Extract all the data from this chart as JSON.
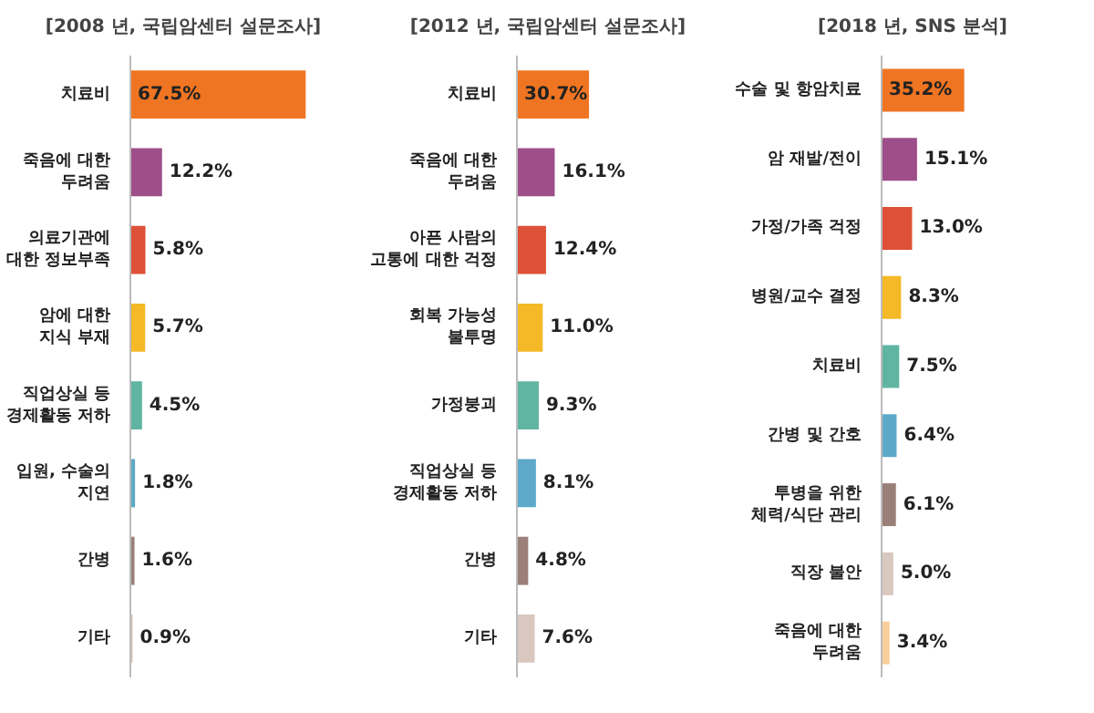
{
  "chart_data": [
    {
      "type": "bar",
      "orientation": "horizontal",
      "title": "[2008 년, 국립암센터 설문조사]",
      "data_labels": true,
      "categories": [
        "치료비",
        "죽음에 대한\n두려움",
        "의료기관에\n대한 정보부족",
        "암에 대한\n지식 부재",
        "직업상실 등\n경제활동 저하",
        "입원, 수술의\n지연",
        "간병",
        "기타"
      ],
      "values": [
        67.5,
        12.2,
        5.8,
        5.7,
        4.5,
        1.8,
        1.6,
        0.9
      ],
      "value_labels": [
        "67.5%",
        "12.2%",
        "5.8%",
        "5.7%",
        "4.5%",
        "1.8%",
        "1.6%",
        "0.9%"
      ],
      "colors": [
        "#f07522",
        "#9e4f8a",
        "#de5138",
        "#f5b927",
        "#5fb5a2",
        "#5ea9c9",
        "#9a8078",
        "#d8c8c0"
      ]
    },
    {
      "type": "bar",
      "orientation": "horizontal",
      "title": "[2012 년, 국립암센터 설문조사]",
      "data_labels": true,
      "categories": [
        "치료비",
        "죽음에 대한\n두려움",
        "아픈 사람의\n고통에 대한 걱정",
        "회복 가능성\n불투명",
        "가정붕괴",
        "직업상실 등\n경제활동 저하",
        "간병",
        "기타"
      ],
      "values": [
        30.7,
        16.1,
        12.4,
        11.0,
        9.3,
        8.1,
        4.8,
        7.6
      ],
      "value_labels": [
        "30.7%",
        "16.1%",
        "12.4%",
        "11.0%",
        "9.3%",
        "8.1%",
        "4.8%",
        "7.6%"
      ],
      "colors": [
        "#f07522",
        "#9e4f8a",
        "#de5138",
        "#f5b927",
        "#5fb5a2",
        "#5ea9c9",
        "#9a8078",
        "#d8c8c0"
      ]
    },
    {
      "type": "bar",
      "orientation": "horizontal",
      "title": "[2018 년, SNS 분석]",
      "data_labels": true,
      "categories": [
        "수술 및 항암치료",
        "암 재발/전이",
        "가정/가족 걱정",
        "병원/교수 결정",
        "치료비",
        "간병 및 간호",
        "투병을 위한\n체력/식단 관리",
        "직장 불안",
        "죽음에 대한\n두려움"
      ],
      "values": [
        35.2,
        15.1,
        13.0,
        8.3,
        7.5,
        6.4,
        6.1,
        5.0,
        3.4
      ],
      "value_labels": [
        "35.2%",
        "15.1%",
        "13.0%",
        "8.3%",
        "7.5%",
        "6.4%",
        "6.1%",
        "5.0%",
        "3.4%"
      ],
      "colors": [
        "#f07522",
        "#9e4f8a",
        "#de5138",
        "#f5b927",
        "#5fb5a2",
        "#5ea9c9",
        "#9a8078",
        "#d8c8c0",
        "#f8cf9a"
      ]
    }
  ]
}
